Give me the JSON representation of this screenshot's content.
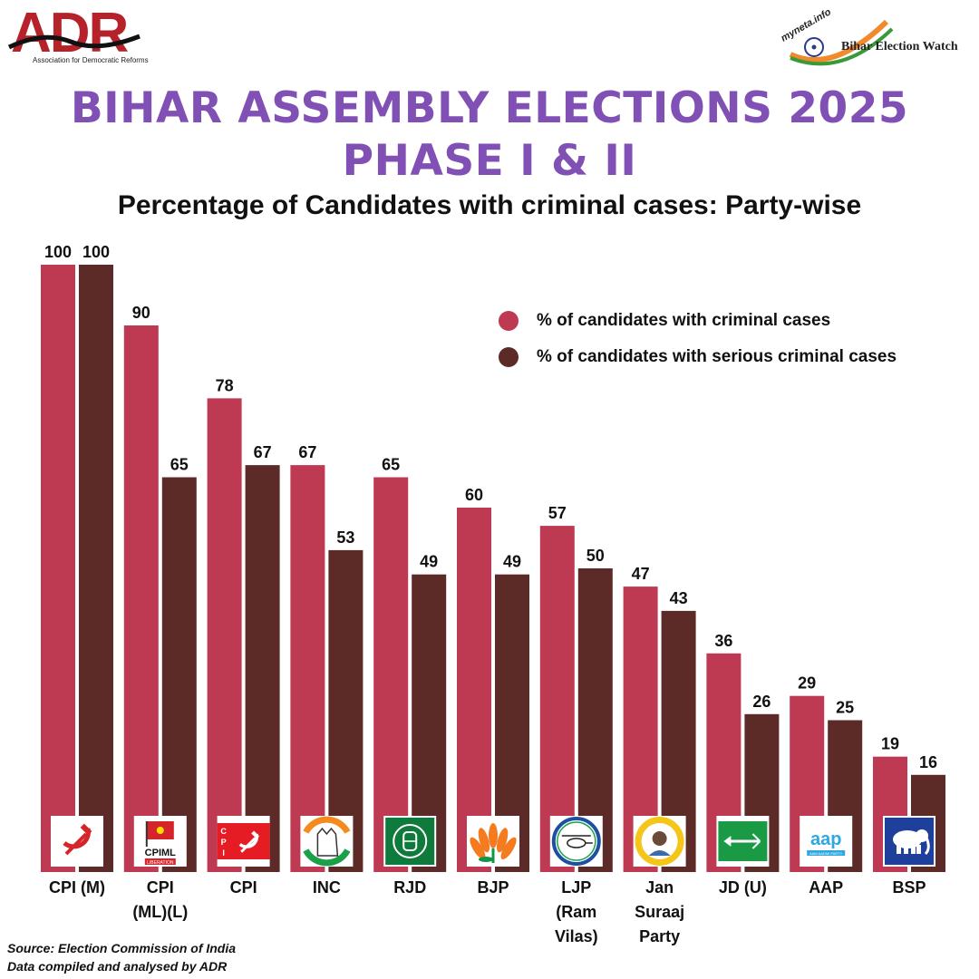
{
  "header": {
    "adr_logo_text": "ADR",
    "adr_logo_tagline": "Association for Democratic Reforms",
    "myneta_text": "myneta.info",
    "bihar_watch_text": "Bihar Election Watch"
  },
  "title_line1": "BIHAR ASSEMBLY ELECTIONS 2025",
  "title_line2": "PHASE I & II",
  "subtitle": "Percentage of Candidates with criminal cases: Party-wise",
  "legend": [
    {
      "label": "% of candidates with criminal cases",
      "color": "#bd3a52"
    },
    {
      "label": "% of candidates with serious criminal cases",
      "color": "#5c2b27"
    }
  ],
  "source_line1": "Source: Election Commission of India",
  "source_line2": "Data compiled and analysed by ADR",
  "chart_data": {
    "type": "bar",
    "title": "Percentage of Candidates with criminal cases: Party-wise",
    "categories": [
      "CPI (M)",
      "CPI (ML)(L)",
      "CPI",
      "INC",
      "RJD",
      "BJP",
      "LJP (Ram Vilas)",
      "Jan Suraaj Party",
      "JD (U)",
      "AAP",
      "BSP"
    ],
    "category_label_lines": [
      [
        "CPI (M)"
      ],
      [
        "CPI",
        "(ML)(L)"
      ],
      [
        "CPI"
      ],
      [
        "INC"
      ],
      [
        "RJD"
      ],
      [
        "BJP"
      ],
      [
        "LJP",
        "(Ram",
        "Vilas)"
      ],
      [
        "Jan",
        "Suraaj",
        "Party"
      ],
      [
        "JD (U)"
      ],
      [
        "AAP"
      ],
      [
        "BSP"
      ]
    ],
    "series": [
      {
        "name": "% of candidates with criminal cases",
        "color": "#bd3a52",
        "values": [
          100,
          90,
          78,
          67,
          65,
          60,
          57,
          47,
          36,
          29,
          19
        ]
      },
      {
        "name": "% of candidates with serious criminal cases",
        "color": "#5c2b27",
        "values": [
          100,
          65,
          67,
          53,
          49,
          49,
          50,
          43,
          26,
          25,
          16
        ]
      }
    ],
    "party_logo_icons": [
      "hammer-sickle-icon",
      "cpiml-flag-icon",
      "cpi-flag-icon",
      "congress-hand-icon",
      "rjd-lantern-icon",
      "bjp-lotus-icon",
      "ljp-helicopter-icon",
      "jan-suraaj-icon",
      "jdu-arrow-icon",
      "aap-broom-icon",
      "bsp-elephant-icon"
    ],
    "logo_texts": {
      "cpiml": "CPIML",
      "cpiml_sub": "LIBERATION",
      "cpi_letters": [
        "C",
        "P",
        "I"
      ],
      "aap": "aap",
      "aap_sub": "AAM AADMI PARTY"
    },
    "ylim": [
      0,
      100
    ],
    "data_labels": true,
    "grid": false,
    "legend_position": "top-right"
  }
}
